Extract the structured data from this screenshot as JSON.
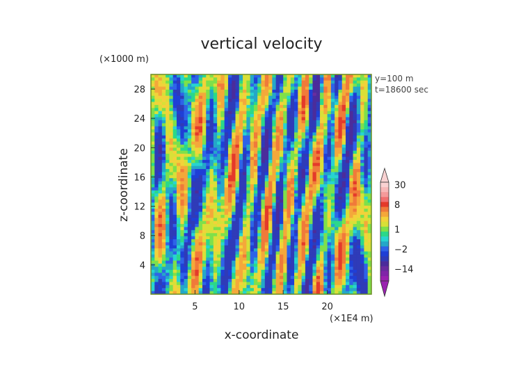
{
  "chart_data": {
    "type": "heatmap",
    "title": "vertical velocity",
    "xlabel": "x-coordinate",
    "ylabel": "z-coordinate",
    "x_unit_label": "(×1E4 m)",
    "y_unit_label": "(×1000 m)",
    "annotations": [
      "y=100 m",
      "t=18600 sec"
    ],
    "xlim": [
      0,
      25
    ],
    "ylim": [
      0,
      30
    ],
    "x_ticks": [
      5,
      10,
      15,
      20
    ],
    "y_ticks": [
      4,
      8,
      12,
      16,
      20,
      24,
      28
    ],
    "grid": false,
    "colorbar": {
      "position": "right",
      "tick_labels": [
        "30",
        "8",
        "1",
        "−2",
        "−14"
      ],
      "tick_values": [
        30,
        8,
        1,
        -2,
        -14
      ],
      "bands": [
        {
          "value": -24,
          "color": "#9a22b0"
        },
        {
          "value": -18,
          "color": "#8025a8"
        },
        {
          "value": -14,
          "color": "#6a2c9f"
        },
        {
          "value": -10,
          "color": "#4b2c9b"
        },
        {
          "value": -6,
          "color": "#2f3bb8"
        },
        {
          "value": -3,
          "color": "#1f3fd6"
        },
        {
          "value": -2,
          "color": "#2e63e8"
        },
        {
          "value": -1,
          "color": "#24a7c8"
        },
        {
          "value": 0,
          "color": "#27d4d0"
        },
        {
          "value": 0.5,
          "color": "#2bd88a"
        },
        {
          "value": 1,
          "color": "#7fe04a"
        },
        {
          "value": 2,
          "color": "#d8e038"
        },
        {
          "value": 3,
          "color": "#f2d23a"
        },
        {
          "value": 4,
          "color": "#f4a83a"
        },
        {
          "value": 6,
          "color": "#f07a3a"
        },
        {
          "value": 8,
          "color": "#e43a2a"
        },
        {
          "value": 12,
          "color": "#f07070"
        },
        {
          "value": 18,
          "color": "#f49a9a"
        },
        {
          "value": 24,
          "color": "#f7b8b8"
        },
        {
          "value": 30,
          "color": "#f9d2d2"
        }
      ]
    }
  },
  "colors": {
    "frame": "#6b8e23",
    "background": "#ffffff"
  }
}
